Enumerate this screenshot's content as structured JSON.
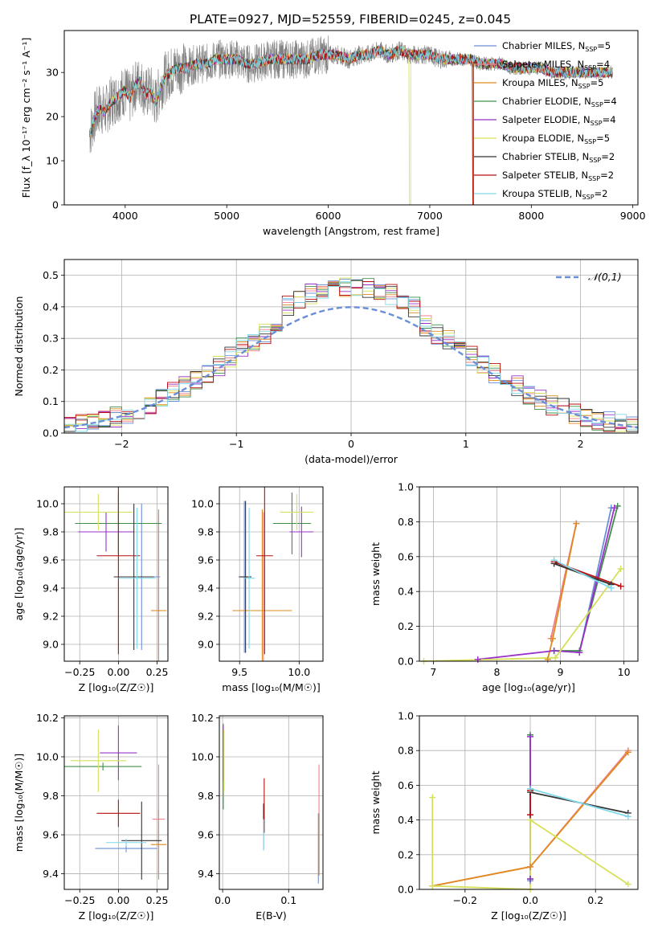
{
  "figure": {
    "title": "PLATE=0927, MJD=52559, FIBERID=0245, z=0.045"
  },
  "palette": [
    "#6b8fd6",
    "#f07f8a",
    "#e08a1e",
    "#3f8f4a",
    "#9b30c8",
    "#d7e05a",
    "#333333",
    "#b80f0f",
    "#7fd9e8"
  ],
  "chart_data": [
    {
      "type": "line",
      "id": "spectrum",
      "xlabel": "wavelength [Angstrom, rest frame]",
      "ylabel": "Flux [f_λ 10⁻¹⁷ erg cm⁻² s⁻¹ A⁻¹]",
      "xlim": [
        3400,
        9050
      ],
      "ylim": [
        0,
        39.5
      ],
      "xticks": [
        "4000",
        "5000",
        "6000",
        "7000",
        "8000",
        "9000"
      ],
      "yticks": [
        "0",
        "10",
        "20",
        "30"
      ],
      "grid": false,
      "legend_position": "top-right",
      "legend": [
        {
          "label": "Chabrier MILES, N",
          "sub": "SSP",
          "eq": "=5"
        },
        {
          "label": "Salpeter MILES, N",
          "sub": "SSP",
          "eq": "=4"
        },
        {
          "label": "Kroupa MILES, N",
          "sub": "SSP",
          "eq": "=5"
        },
        {
          "label": "Chabrier ELODIE, N",
          "sub": "SSP",
          "eq": "=4"
        },
        {
          "label": "Salpeter ELODIE, N",
          "sub": "SSP",
          "eq": "=4"
        },
        {
          "label": "Kroupa ELODIE, N",
          "sub": "SSP",
          "eq": "=5"
        },
        {
          "label": "Chabrier STELIB, N",
          "sub": "SSP",
          "eq": "=2"
        },
        {
          "label": "Salpeter STELIB, N",
          "sub": "SSP",
          "eq": "=2"
        },
        {
          "label": "Kroupa STELIB, N",
          "sub": "SSP",
          "eq": "=2"
        }
      ],
      "data_trace": {
        "name": "data",
        "color": "#808080",
        "x": [
          3650,
          3700,
          3750,
          3800,
          3850,
          3900,
          3950,
          4000,
          4050,
          4100,
          4150,
          4200,
          4250,
          4300,
          4350,
          4400,
          4450,
          4500,
          4600,
          4700,
          4800,
          4900,
          5000,
          5100,
          5200,
          5300,
          5400,
          5500,
          5600,
          5700,
          5800,
          5900,
          6000,
          6100,
          6200,
          6300,
          6400,
          6500,
          6600,
          6700,
          6800,
          6900,
          7000,
          7100,
          7200,
          7300,
          7400,
          7500,
          7600,
          7700,
          7800,
          7900,
          8000,
          8100,
          8200,
          8300,
          8400,
          8500,
          8600,
          8700,
          8800
        ],
        "y": [
          16,
          20,
          22,
          21,
          23,
          24,
          25,
          26,
          24,
          27,
          28,
          25,
          26,
          23,
          27,
          29,
          30,
          31,
          31,
          32,
          32,
          33,
          33,
          33,
          32,
          32,
          33,
          33,
          33,
          33,
          33,
          34,
          34,
          34,
          33,
          34,
          34,
          35,
          34,
          35,
          34,
          34,
          34,
          33,
          33,
          33,
          33,
          32,
          32,
          32,
          31,
          31,
          31,
          31,
          30,
          30,
          30,
          30,
          30,
          30,
          30
        ]
      },
      "models": [
        {
          "color": "#6b8fd6",
          "drop": null
        },
        {
          "color": "#f07f8a",
          "drop": null
        },
        {
          "color": "#e08a1e",
          "drop": 7420
        },
        {
          "color": "#3f8f4a",
          "drop": null
        },
        {
          "color": "#9b30c8",
          "drop": null
        },
        {
          "color": "#d7e05a",
          "drop": 6800
        },
        {
          "color": "#333333",
          "drop": null
        },
        {
          "color": "#b80f0f",
          "drop": 7420
        },
        {
          "color": "#7fd9e8",
          "drop": null
        }
      ]
    },
    {
      "type": "histogram",
      "id": "residuals",
      "xlabel": "(data-model)/error",
      "ylabel": "Normed distribution",
      "xlim": [
        -2.5,
        2.5
      ],
      "ylim": [
        0,
        0.55
      ],
      "xticks": [
        "−2",
        "−1",
        "0",
        "1",
        "2"
      ],
      "yticks": [
        "0.0",
        "0.1",
        "0.2",
        "0.3",
        "0.4",
        "0.5"
      ],
      "grid": true,
      "legend_position": "top-right",
      "reference_curve": {
        "name": "𝒩(0,1)",
        "color": "#6b8fd6",
        "mean": 0,
        "sigma": 1
      },
      "bin_edges": [
        -2.5,
        -2.4,
        -2.3,
        -2.2,
        -2.1,
        -2.0,
        -1.9,
        -1.8,
        -1.7,
        -1.6,
        -1.5,
        -1.4,
        -1.3,
        -1.2,
        -1.1,
        -1.0,
        -0.9,
        -0.8,
        -0.7,
        -0.6,
        -0.5,
        -0.4,
        -0.3,
        -0.2,
        -0.1,
        0.0,
        0.1,
        0.2,
        0.3,
        0.4,
        0.5,
        0.6,
        0.7,
        0.8,
        0.9,
        1.0,
        1.1,
        1.2,
        1.3,
        1.4,
        1.5,
        1.6,
        1.7,
        1.8,
        1.9,
        2.0,
        2.1,
        2.2,
        2.3,
        2.4,
        2.5
      ]
    },
    {
      "type": "errorbar",
      "id": "age-vs-Z",
      "xlabel": "Z [log₁₀(Z/Z☉)]",
      "ylabel": "age  [log₁₀(age/yr)]",
      "xlim": [
        -0.35,
        0.32
      ],
      "ylim": [
        8.88,
        10.12
      ],
      "xticks": [
        "−0.25",
        "0.00",
        "0.25"
      ],
      "yticks": [
        "9.0",
        "9.2",
        "9.4",
        "9.6",
        "9.8",
        "10.0"
      ],
      "points": [
        {
          "x": 0.15,
          "y": 9.48,
          "xerr": 0.12,
          "yerr": 0.52,
          "color": "#6b8fd6"
        },
        {
          "x": 0.26,
          "y": 9.24,
          "xerr": 0.04,
          "yerr": 0.7,
          "color": "#f07f8a"
        },
        {
          "x": 0.26,
          "y": 9.24,
          "xerr": 0.05,
          "yerr": 0.72,
          "color": "#e08a1e"
        },
        {
          "x": 0.0,
          "y": 9.86,
          "xerr": 0.28,
          "yerr": 0.22,
          "color": "#3f8f4a"
        },
        {
          "x": -0.08,
          "y": 9.8,
          "xerr": 0.18,
          "yerr": 0.14,
          "color": "#9b30c8"
        },
        {
          "x": -0.13,
          "y": 9.94,
          "xerr": 0.22,
          "yerr": 0.13,
          "color": "#d7e05a"
        },
        {
          "x": 0.1,
          "y": 9.48,
          "xerr": 0.13,
          "yerr": 0.52,
          "color": "#333333"
        },
        {
          "x": 0.0,
          "y": 9.63,
          "xerr": 0.14,
          "yerr": 0.7,
          "color": "#b80f0f"
        },
        {
          "x": 0.12,
          "y": 9.47,
          "xerr": 0.12,
          "yerr": 0.5,
          "color": "#7fd9e8"
        }
      ]
    },
    {
      "type": "errorbar",
      "id": "age-vs-mass",
      "xlabel": "mass [log₁₀(M/M☉)]",
      "ylabel": "",
      "xlim": [
        9.33,
        10.2
      ],
      "ylim": [
        8.88,
        10.12
      ],
      "xticks": [
        "9.5",
        "10.0"
      ],
      "yticks": [
        "9.0",
        "9.2",
        "9.4",
        "9.6",
        "9.8",
        "10.0"
      ],
      "points": [
        {
          "x": 9.54,
          "y": 9.48,
          "xerr": 0.05,
          "yerr": 0.54,
          "color": "#6b8fd6"
        },
        {
          "x": 9.7,
          "y": 9.24,
          "xerr": 0.2,
          "yerr": 0.7,
          "color": "#f07f8a"
        },
        {
          "x": 9.69,
          "y": 9.24,
          "xerr": 0.25,
          "yerr": 0.72,
          "color": "#e08a1e"
        },
        {
          "x": 9.94,
          "y": 9.86,
          "xerr": 0.16,
          "yerr": 0.22,
          "color": "#3f8f4a"
        },
        {
          "x": 10.02,
          "y": 9.8,
          "xerr": 0.1,
          "yerr": 0.18,
          "color": "#9b30c8"
        },
        {
          "x": 9.98,
          "y": 9.94,
          "xerr": 0.14,
          "yerr": 0.13,
          "color": "#d7e05a"
        },
        {
          "x": 9.55,
          "y": 9.48,
          "xerr": 0.05,
          "yerr": 0.54,
          "color": "#333333"
        },
        {
          "x": 9.71,
          "y": 9.63,
          "xerr": 0.07,
          "yerr": 0.7,
          "color": "#b80f0f"
        },
        {
          "x": 9.58,
          "y": 9.47,
          "xerr": 0.05,
          "yerr": 0.5,
          "color": "#7fd9e8"
        }
      ]
    },
    {
      "type": "line",
      "id": "weight-vs-age",
      "xlabel": "age  [log₁₀(age/yr)]",
      "ylabel": "mass weight",
      "xlim": [
        6.78,
        10.22
      ],
      "ylim": [
        0,
        1.0
      ],
      "xticks": [
        "7",
        "8",
        "9",
        "10"
      ],
      "yticks": [
        "0.0",
        "0.2",
        "0.4",
        "0.6",
        "0.8",
        "1.0"
      ],
      "grid": true,
      "series": [
        {
          "color": "#6b8fd6",
          "points": [
            [
              8.9,
              0.06
            ],
            [
              9.3,
              0.05
            ],
            [
              9.8,
              0.88
            ]
          ]
        },
        {
          "color": "#f07f8a",
          "points": [
            [
              8.85,
              0.13
            ],
            [
              9.25,
              0.79
            ]
          ]
        },
        {
          "color": "#e08a1e",
          "points": [
            [
              8.8,
              0.01
            ],
            [
              8.88,
              0.13
            ],
            [
              9.25,
              0.79
            ]
          ]
        },
        {
          "color": "#3f8f4a",
          "points": [
            [
              8.9,
              0.06
            ],
            [
              9.3,
              0.06
            ],
            [
              9.9,
              0.89
            ]
          ]
        },
        {
          "color": "#9b30c8",
          "points": [
            [
              7.7,
              0.01
            ],
            [
              8.9,
              0.06
            ],
            [
              9.3,
              0.05
            ],
            [
              9.85,
              0.88
            ]
          ]
        },
        {
          "color": "#d7e05a",
          "points": [
            [
              6.85,
              0.0
            ],
            [
              8.92,
              0.02
            ],
            [
              9.95,
              0.53
            ]
          ]
        },
        {
          "color": "#333333",
          "points": [
            [
              8.9,
              0.56
            ],
            [
              9.8,
              0.44
            ]
          ]
        },
        {
          "color": "#b80f0f",
          "points": [
            [
              8.9,
              0.57
            ],
            [
              9.95,
              0.43
            ]
          ]
        },
        {
          "color": "#7fd9e8",
          "points": [
            [
              8.9,
              0.58
            ],
            [
              9.8,
              0.42
            ]
          ]
        }
      ]
    },
    {
      "type": "errorbar",
      "id": "mass-vs-Z",
      "xlabel": "Z [log₁₀(Z/Z☉)]",
      "ylabel": "mass [log₁₀(M/M☉)]",
      "xlim": [
        -0.35,
        0.32
      ],
      "ylim": [
        9.32,
        10.21
      ],
      "xticks": [
        "−0.25",
        "0.00",
        "0.25"
      ],
      "yticks": [
        "9.4",
        "9.6",
        "9.8",
        "10.0",
        "10.2"
      ],
      "points": [
        {
          "x": 0.05,
          "y": 9.53,
          "xerr": 0.2,
          "yerr": 0.02,
          "color": "#6b8fd6"
        },
        {
          "x": 0.26,
          "y": 9.68,
          "xerr": 0.04,
          "yerr": 0.28,
          "color": "#f07f8a"
        },
        {
          "x": 0.26,
          "y": 9.55,
          "xerr": 0.05,
          "yerr": 0.18,
          "color": "#e08a1e"
        },
        {
          "x": -0.1,
          "y": 9.95,
          "xerr": 0.25,
          "yerr": 0.02,
          "color": "#3f8f4a"
        },
        {
          "x": 0.0,
          "y": 10.02,
          "xerr": 0.12,
          "yerr": 0.14,
          "color": "#9b30c8"
        },
        {
          "x": -0.13,
          "y": 9.98,
          "xerr": 0.18,
          "yerr": 0.16,
          "color": "#d7e05a"
        },
        {
          "x": 0.15,
          "y": 9.57,
          "xerr": 0.13,
          "yerr": 0.2,
          "color": "#333333"
        },
        {
          "x": 0.0,
          "y": 9.71,
          "xerr": 0.14,
          "yerr": 0.07,
          "color": "#b80f0f"
        },
        {
          "x": 0.05,
          "y": 9.56,
          "xerr": 0.13,
          "yerr": 0.02,
          "color": "#7fd9e8"
        }
      ]
    },
    {
      "type": "errorbar",
      "id": "mass-vs-ebv",
      "xlabel": "E(B-V)",
      "ylabel": "",
      "xlim": [
        -0.005,
        0.152
      ],
      "ylim": [
        9.32,
        10.21
      ],
      "xticks": [
        "0.0",
        "0.1"
      ],
      "yticks": [
        "9.4",
        "9.6",
        "9.8",
        "10.0",
        "10.2"
      ],
      "points": [
        {
          "x": 0.145,
          "y": 9.53,
          "xerr": 0,
          "yerr": 0.18,
          "color": "#6b8fd6"
        },
        {
          "x": 0.146,
          "y": 9.68,
          "xerr": 0,
          "yerr": 0.28,
          "color": "#f07f8a"
        },
        {
          "x": 0.146,
          "y": 9.55,
          "xerr": 0,
          "yerr": 0.16,
          "color": "#e08a1e"
        },
        {
          "x": 0.001,
          "y": 9.95,
          "xerr": 0,
          "yerr": 0.22,
          "color": "#3f8f4a"
        },
        {
          "x": 0.001,
          "y": 10.02,
          "xerr": 0,
          "yerr": 0.14,
          "color": "#9b30c8"
        },
        {
          "x": 0.002,
          "y": 9.98,
          "xerr": 0,
          "yerr": 0.16,
          "color": "#d7e05a"
        },
        {
          "x": 0.062,
          "y": 9.64,
          "xerr": 0,
          "yerr": 0.12,
          "color": "#333333"
        },
        {
          "x": 0.063,
          "y": 9.75,
          "xerr": 0,
          "yerr": 0.14,
          "color": "#b80f0f"
        },
        {
          "x": 0.062,
          "y": 9.6,
          "xerr": 0,
          "yerr": 0.08,
          "color": "#7fd9e8"
        }
      ]
    },
    {
      "type": "line",
      "id": "weight-vs-Z",
      "xlabel": "Z [log₁₀(Z/Z☉)]",
      "ylabel": "mass weight",
      "xlim": [
        -0.34,
        0.33
      ],
      "ylim": [
        0,
        1.0
      ],
      "xticks": [
        "−0.2",
        "0.0",
        "0.2"
      ],
      "yticks": [
        "0.0",
        "0.2",
        "0.4",
        "0.6",
        "0.8",
        "1.0"
      ],
      "grid": true,
      "series": [
        {
          "color": "#6b8fd6",
          "points": [
            [
              0.0,
              0.88
            ],
            [
              0.0,
              0.06
            ],
            [
              0.0,
              0.05
            ]
          ]
        },
        {
          "color": "#f07f8a",
          "points": [
            [
              -0.3,
              0.02
            ],
            [
              0.0,
              0.13
            ],
            [
              0.3,
              0.8
            ]
          ]
        },
        {
          "color": "#e08a1e",
          "points": [
            [
              -0.3,
              0.02
            ],
            [
              0.0,
              0.13
            ],
            [
              0.3,
              0.79
            ]
          ]
        },
        {
          "color": "#3f8f4a",
          "points": [
            [
              0.0,
              0.89
            ],
            [
              0.0,
              0.06
            ]
          ]
        },
        {
          "color": "#9b30c8",
          "points": [
            [
              0.0,
              0.88
            ],
            [
              0.0,
              0.06
            ]
          ]
        },
        {
          "color": "#d7e05a",
          "points": [
            [
              -0.3,
              0.53
            ],
            [
              -0.3,
              0.02
            ],
            [
              0.0,
              0.0
            ],
            [
              0.0,
              0.4
            ],
            [
              0.3,
              0.03
            ]
          ]
        },
        {
          "color": "#333333",
          "points": [
            [
              0.0,
              0.56
            ],
            [
              0.3,
              0.44
            ]
          ]
        },
        {
          "color": "#b80f0f",
          "points": [
            [
              0.0,
              0.57
            ],
            [
              0.0,
              0.43
            ]
          ]
        },
        {
          "color": "#7fd9e8",
          "points": [
            [
              0.0,
              0.58
            ],
            [
              0.3,
              0.42
            ]
          ]
        }
      ]
    }
  ]
}
